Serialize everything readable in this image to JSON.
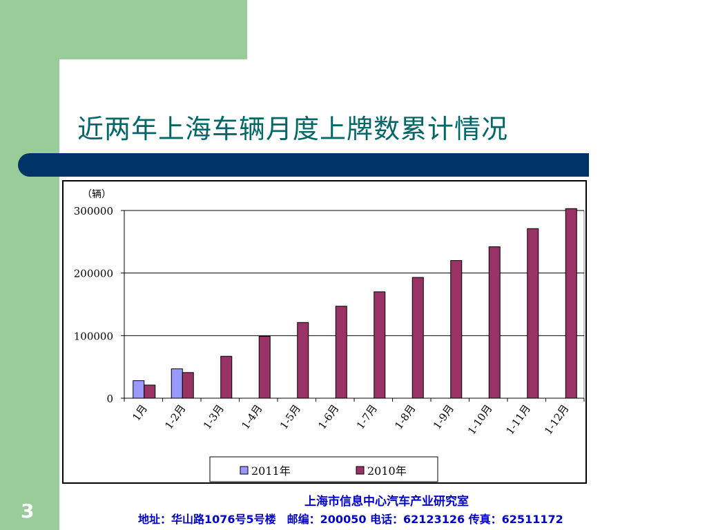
{
  "slide": {
    "title": "近两年上海车辆月度上牌数累计情况",
    "page_number": "3",
    "footer_org": "上海市信息中心汽车产业研究室",
    "footer_contact": "地址：华山路1076号5号楼　邮编：200050  电话：62123126  传真：62511172"
  },
  "colors": {
    "green": "#99cc99",
    "blue_bar": "#003366",
    "title": "#006666",
    "series_2011": "#9999ff",
    "series_2010": "#993366",
    "footer": "#0000cc"
  },
  "chart_data": {
    "type": "bar",
    "title": "",
    "xlabel": "",
    "ylabel": "（辆）",
    "ylim": [
      0,
      300000
    ],
    "yticks": [
      "0",
      "100000",
      "200000",
      "300000"
    ],
    "grid": true,
    "legend_position": "bottom",
    "categories": [
      "1月",
      "1-2月",
      "1-3月",
      "1-4月",
      "1-5月",
      "1-6月",
      "1-7月",
      "1-8月",
      "1-9月",
      "1-10月",
      "1-11月",
      "1-12月"
    ],
    "series": [
      {
        "name": "2011年",
        "values": [
          28000,
          47000,
          null,
          null,
          null,
          null,
          null,
          null,
          null,
          null,
          null,
          null
        ]
      },
      {
        "name": "2010年",
        "values": [
          21000,
          41000,
          67000,
          99000,
          121000,
          147000,
          170000,
          193000,
          220000,
          242000,
          271000,
          303000
        ]
      }
    ]
  }
}
